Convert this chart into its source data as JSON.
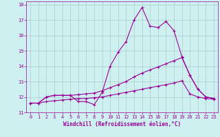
{
  "xlabel": "Windchill (Refroidissement éolien,°C)",
  "bg_color": "#cff0f0",
  "line_color": "#990099",
  "grid_color": "#aacccc",
  "xlim": [
    -0.5,
    23.5
  ],
  "ylim": [
    11,
    18.2
  ],
  "xticks": [
    0,
    1,
    2,
    3,
    4,
    5,
    6,
    7,
    8,
    9,
    10,
    11,
    12,
    13,
    14,
    15,
    16,
    17,
    18,
    19,
    20,
    21,
    22,
    23
  ],
  "yticks": [
    11,
    12,
    13,
    14,
    15,
    16,
    17,
    18
  ],
  "line1_x": [
    0,
    1,
    2,
    3,
    4,
    5,
    6,
    7,
    8,
    9,
    10,
    11,
    12,
    13,
    14,
    15,
    16,
    17,
    18,
    19,
    20,
    21,
    22,
    23
  ],
  "line1_y": [
    11.6,
    11.6,
    12.0,
    12.1,
    12.1,
    12.1,
    11.7,
    11.7,
    11.5,
    12.3,
    14.0,
    14.9,
    15.6,
    17.0,
    17.8,
    16.6,
    16.5,
    16.9,
    16.3,
    14.6,
    13.4,
    12.5,
    12.0,
    11.9
  ],
  "line2_x": [
    0,
    1,
    2,
    3,
    4,
    5,
    6,
    7,
    8,
    9,
    10,
    11,
    12,
    13,
    14,
    15,
    16,
    17,
    18,
    19,
    20,
    21,
    22,
    23
  ],
  "line2_y": [
    11.6,
    11.6,
    12.0,
    12.1,
    12.1,
    12.1,
    12.15,
    12.2,
    12.25,
    12.4,
    12.6,
    12.8,
    13.0,
    13.3,
    13.55,
    13.75,
    13.95,
    14.15,
    14.35,
    14.55,
    13.4,
    12.5,
    12.0,
    11.9
  ],
  "line3_x": [
    0,
    1,
    2,
    3,
    4,
    5,
    6,
    7,
    8,
    9,
    10,
    11,
    12,
    13,
    14,
    15,
    16,
    17,
    18,
    19,
    20,
    21,
    22,
    23
  ],
  "line3_y": [
    11.6,
    11.6,
    11.7,
    11.75,
    11.8,
    11.85,
    11.9,
    11.9,
    11.95,
    12.0,
    12.1,
    12.2,
    12.3,
    12.4,
    12.5,
    12.6,
    12.7,
    12.8,
    12.9,
    13.05,
    12.2,
    12.0,
    11.9,
    11.85
  ]
}
